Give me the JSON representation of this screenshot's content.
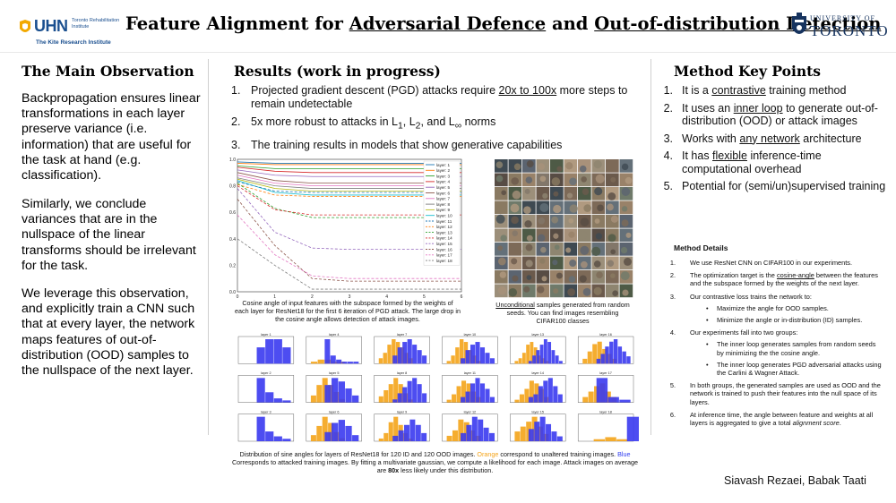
{
  "header": {
    "logo_left": {
      "word": "UHN",
      "sub": "Toronto Rehabilitation Institute",
      "line2": "The Kite Research Institute"
    },
    "title_parts": [
      "Feature Alignment for ",
      "Adversarial Defence",
      " and ",
      "Out-of-distribution Detection"
    ],
    "logo_right": {
      "line1": "UNIVERSITY OF",
      "line2": "TORONTO"
    }
  },
  "left": {
    "heading": "The Main Observation",
    "paragraphs": [
      "Backpropagation ensures linear transformations in each layer preserve variance (i.e. information) that are useful for the task at hand (e.g. classification).",
      "Similarly, we conclude variances that are in the nullspace of the linear transforms should be irrelevant for the task.",
      "We leverage this observation, and explicitly train a CNN such that at every layer, the network maps features of out-of-distribution (OOD) samples to the nullspace of the next layer."
    ]
  },
  "middle": {
    "heading": "Results (work in progress)",
    "items": [
      {
        "num": "1.",
        "pre": "Projected gradient descent (PGD) attacks require ",
        "ul": "20x to 100x",
        "post": " more steps to remain undetectable"
      },
      {
        "num": "2.",
        "pre": "5x more robust to attacks in L",
        "s1": "1",
        "mid1": ", L",
        "s2": "2",
        "mid2": ", and L",
        "s3": "∞",
        "post": " norms"
      },
      {
        "num": "3.",
        "text": "The training results in models that show generative capabilities"
      }
    ],
    "cosine_caption": "Cosine angle of input features with the subspace formed by the weights of each layer for ResNet18 for the first 6 iteration of PGD attack. The large drop in the cosine angle allows detection of attack images.",
    "samples_caption": {
      "ul": "Unconditional",
      "rest": " samples generated from random seeds. You can find images resembling CIFAR100 classes"
    },
    "hist_caption": {
      "p1": "Distribution of sine angles for layers of ResNet18 for 120 ID and 120 OOD images. ",
      "orange": "Orange",
      "p2": " correspond to unaltered training images. ",
      "blue": "Blue",
      "p3": " Corresponds to attacked training images. By fitting a multivariate gaussian, we compute a likelihood for each image. Attack images on average are ",
      "bold": "80x",
      "p4": " less likely under this distribution."
    }
  },
  "right": {
    "heading": "Method Key Points",
    "items": [
      {
        "num": "1.",
        "pre": "It is a ",
        "ul": "contrastive",
        "post": " training method"
      },
      {
        "num": "2.",
        "pre": "It uses an ",
        "ul": "inner loop",
        "post": " to generate out-of-distribution (OOD) or attack images"
      },
      {
        "num": "3.",
        "pre": "Works with ",
        "ul": "any network",
        "post": " architecture"
      },
      {
        "num": "4.",
        "pre": "It has ",
        "ul": "flexible",
        "post": " inference-time computational overhead"
      },
      {
        "num": "5.",
        "pre": "Potential for (semi/un)supervised training",
        "ul": "",
        "post": ""
      }
    ],
    "details_heading": "Method Details",
    "details": [
      {
        "num": "1.",
        "pre": "We use ResNet CNN on CIFAR100 in our experiments.",
        "ul": "",
        "post": "",
        "sub": []
      },
      {
        "num": "2.",
        "pre": "The optimization target is the ",
        "ul": "cosine-angle",
        "post": " between the features and the subspace formed by the weights of the next layer.",
        "sub": []
      },
      {
        "num": "3.",
        "pre": "Our contrastive loss trains the network to:",
        "ul": "",
        "post": "",
        "sub": [
          "Maximize the angle for OOD samples.",
          "Minimize the angle or in-distribution (ID) samples."
        ]
      },
      {
        "num": "4.",
        "pre": "Our experiments fall into two groups:",
        "ul": "",
        "post": "",
        "sub": [
          "The inner loop generates samples from random seeds by minimizing the the cosine angle.",
          "The inner loop generates PGD adversarial attacks using the Carlini & Wagner Attack."
        ]
      },
      {
        "num": "5.",
        "pre": "In both groups, the generated samples are used as OOD and the network is trained to push their features into the null space of its layers.",
        "ul": "",
        "post": "",
        "sub": []
      },
      {
        "num": "6.",
        "pre": "At inference time, the angle between feature and weights at all layers is aggregated to give a total ",
        "ital": "alignment score",
        "post": ".",
        "sub": []
      }
    ],
    "authors": "Siavash Rezaei, Babak Taati"
  },
  "chart_data": [
    {
      "type": "line",
      "x": [
        0,
        1,
        2,
        3,
        4,
        5,
        6
      ],
      "xticks": [
        "0",
        "1",
        "2",
        "3",
        "4",
        "5",
        "6"
      ],
      "yticks": [
        "0.0",
        "0.2",
        "0.4",
        "0.6",
        "0.8",
        "1.0"
      ],
      "ylim": [
        0,
        1
      ],
      "series": [
        {
          "name": "layer: 1",
          "color": "#1f77b4",
          "dash": false,
          "values": [
            0.98,
            0.97,
            0.97,
            0.97,
            0.97,
            0.97,
            0.97
          ]
        },
        {
          "name": "layer: 2",
          "color": "#ff7f0e",
          "dash": false,
          "values": [
            0.97,
            0.96,
            0.96,
            0.96,
            0.96,
            0.96,
            0.96
          ]
        },
        {
          "name": "layer: 3",
          "color": "#2ca02c",
          "dash": false,
          "values": [
            0.95,
            0.93,
            0.93,
            0.93,
            0.93,
            0.93,
            0.93
          ]
        },
        {
          "name": "layer: 4",
          "color": "#d62728",
          "dash": false,
          "values": [
            0.94,
            0.91,
            0.9,
            0.9,
            0.9,
            0.9,
            0.9
          ]
        },
        {
          "name": "layer: 5",
          "color": "#9467bd",
          "dash": false,
          "values": [
            0.92,
            0.88,
            0.87,
            0.87,
            0.87,
            0.87,
            0.87
          ]
        },
        {
          "name": "layer: 6",
          "color": "#8c564b",
          "dash": false,
          "values": [
            0.9,
            0.84,
            0.82,
            0.82,
            0.82,
            0.82,
            0.82
          ]
        },
        {
          "name": "layer: 7",
          "color": "#e377c2",
          "dash": false,
          "values": [
            0.88,
            0.82,
            0.8,
            0.8,
            0.8,
            0.8,
            0.8
          ]
        },
        {
          "name": "layer: 8",
          "color": "#7f7f7f",
          "dash": false,
          "values": [
            0.86,
            0.8,
            0.78,
            0.78,
            0.78,
            0.78,
            0.78
          ]
        },
        {
          "name": "layer: 9",
          "color": "#bcbd22",
          "dash": false,
          "values": [
            0.85,
            0.78,
            0.76,
            0.76,
            0.76,
            0.76,
            0.76
          ]
        },
        {
          "name": "layer: 10",
          "color": "#17becf",
          "dash": false,
          "values": [
            0.84,
            0.75,
            0.73,
            0.73,
            0.73,
            0.73,
            0.73
          ]
        },
        {
          "name": "layer: 11",
          "color": "#1f77b4",
          "dash": true,
          "values": [
            0.83,
            0.76,
            0.75,
            0.75,
            0.75,
            0.75,
            0.75
          ]
        },
        {
          "name": "layer: 12",
          "color": "#ff7f0e",
          "dash": true,
          "values": [
            0.81,
            0.73,
            0.72,
            0.72,
            0.72,
            0.72,
            0.72
          ]
        },
        {
          "name": "layer: 13",
          "color": "#2ca02c",
          "dash": true,
          "values": [
            0.82,
            0.63,
            0.56,
            0.56,
            0.56,
            0.56,
            0.56
          ]
        },
        {
          "name": "layer: 14",
          "color": "#d62728",
          "dash": true,
          "values": [
            0.8,
            0.62,
            0.58,
            0.58,
            0.58,
            0.58,
            0.58
          ]
        },
        {
          "name": "layer: 15",
          "color": "#9467bd",
          "dash": true,
          "values": [
            0.78,
            0.45,
            0.33,
            0.32,
            0.32,
            0.32,
            0.32
          ]
        },
        {
          "name": "layer: 16",
          "color": "#8c564b",
          "dash": true,
          "values": [
            0.7,
            0.35,
            0.1,
            0.08,
            0.08,
            0.08,
            0.08
          ]
        },
        {
          "name": "layer: 17",
          "color": "#e377c2",
          "dash": true,
          "values": [
            0.58,
            0.28,
            0.12,
            0.1,
            0.1,
            0.1,
            0.1
          ]
        },
        {
          "name": "layer: 18",
          "color": "#7f7f7f",
          "dash": true,
          "values": [
            0.4,
            0.2,
            0.02,
            0.02,
            0.02,
            0.02,
            0.02
          ]
        }
      ]
    },
    {
      "type": "bar",
      "panels": [
        {
          "title": "layer 1",
          "orange": [],
          "blue": [
            2,
            3,
            3,
            2
          ]
        },
        {
          "title": "layer 4",
          "orange": [
            1,
            2,
            2,
            1,
            1
          ],
          "blue": [
            12,
            4,
            2,
            1,
            1,
            1
          ]
        },
        {
          "title": "layer 7",
          "orange": [
            2,
            4,
            7,
            9,
            8,
            6,
            4,
            2
          ],
          "blue": [
            3,
            6,
            8,
            9,
            7,
            5,
            3
          ]
        },
        {
          "title": "layer 10",
          "orange": [
            1,
            3,
            6,
            9,
            8,
            5,
            3,
            1
          ],
          "blue": [
            2,
            5,
            7,
            8,
            6,
            4,
            2
          ]
        },
        {
          "title": "layer 13",
          "orange": [
            1,
            2,
            4,
            7,
            8,
            6,
            3,
            2,
            1
          ],
          "blue": [
            1,
            3,
            5,
            7,
            9,
            8,
            5,
            3,
            1
          ]
        },
        {
          "title": "layer 16",
          "orange": [
            2,
            5,
            8,
            9,
            6,
            4,
            2
          ],
          "blue": [
            2,
            4,
            7,
            9,
            10,
            7,
            5,
            3
          ]
        },
        {
          "title": "layer 2",
          "orange": [],
          "blue": [
            12,
            5,
            2,
            1
          ]
        },
        {
          "title": "layer 5",
          "orange": [
            2,
            5,
            7,
            5,
            3,
            1
          ],
          "blue": [
            5,
            7,
            6,
            4,
            2
          ]
        },
        {
          "title": "layer 8",
          "orange": [
            2,
            4,
            6,
            8,
            6,
            3,
            1
          ],
          "blue": [
            1,
            3,
            5,
            7,
            8,
            6,
            3
          ]
        },
        {
          "title": "layer 11",
          "orange": [
            1,
            3,
            6,
            8,
            7,
            4,
            2
          ],
          "blue": [
            2,
            4,
            7,
            9,
            7,
            5,
            2
          ]
        },
        {
          "title": "layer 14",
          "orange": [
            1,
            3,
            5,
            8,
            7,
            5,
            2
          ],
          "blue": [
            2,
            3,
            6,
            8,
            9,
            6,
            3
          ]
        },
        {
          "title": "layer 17",
          "orange": [
            2,
            4,
            6,
            7,
            4,
            2
          ],
          "blue": [
            9,
            2,
            1
          ]
        },
        {
          "title": "layer 3",
          "orange": [],
          "blue": [
            10,
            4,
            2,
            1
          ]
        },
        {
          "title": "layer 6",
          "orange": [
            2,
            5,
            8,
            6,
            3,
            1
          ],
          "blue": [
            3,
            6,
            7,
            5,
            2
          ]
        },
        {
          "title": "layer 9",
          "orange": [
            1,
            3,
            7,
            9,
            6,
            3,
            1
          ],
          "blue": [
            2,
            4,
            6,
            8,
            6,
            3
          ]
        },
        {
          "title": "layer 12",
          "orange": [
            2,
            4,
            8,
            7,
            4,
            2
          ],
          "blue": [
            3,
            6,
            9,
            8,
            5,
            3
          ]
        },
        {
          "title": "layer 15",
          "orange": [
            4,
            6,
            8,
            10,
            6,
            3
          ],
          "blue": [
            5,
            8,
            10,
            7,
            4,
            2
          ]
        },
        {
          "title": "layer 18",
          "orange": [
            1,
            2,
            1
          ],
          "blue": [
            12
          ]
        }
      ]
    }
  ]
}
